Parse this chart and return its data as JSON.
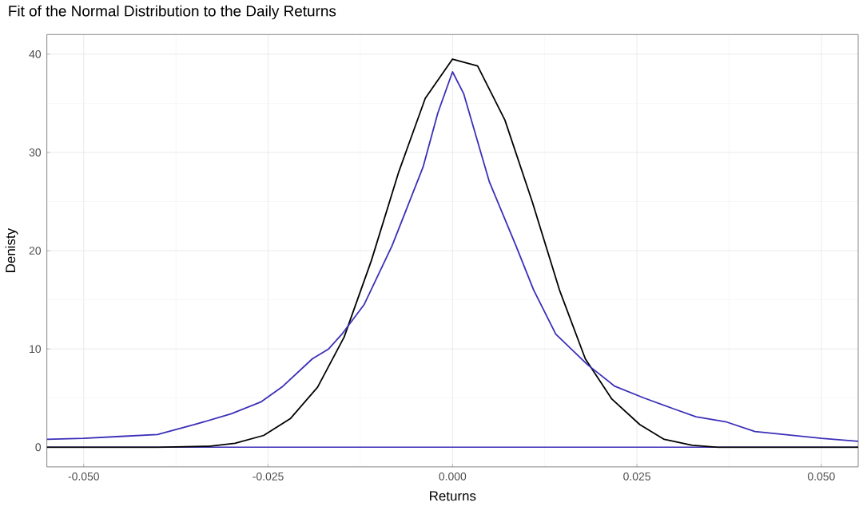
{
  "chart_data": {
    "type": "line",
    "title": "Fit of the Normal Distribution to the Daily Returns",
    "xlabel": "Returns",
    "ylabel": "Denisty",
    "xlim": [
      -0.055,
      0.055
    ],
    "ylim": [
      -2,
      42
    ],
    "xticks": [
      {
        "value": -0.05,
        "label": "-0.050"
      },
      {
        "value": -0.025,
        "label": "-0.025"
      },
      {
        "value": 0,
        "label": "0.000"
      },
      {
        "value": 0.025,
        "label": "0.025"
      },
      {
        "value": 0.05,
        "label": "0.050"
      }
    ],
    "yticks": [
      0,
      10,
      20,
      30,
      40
    ],
    "grid": true,
    "ref_lines": [
      {
        "axis": "y",
        "value": 0,
        "color": "#3b2fb8"
      }
    ],
    "series": [
      {
        "color": "#000000",
        "x": [
          -0.055,
          -0.04,
          -0.033,
          -0.0295,
          -0.0256,
          -0.022,
          -0.0183,
          -0.0147,
          -0.011,
          -0.0073,
          -0.0037,
          0,
          0.0034,
          0.0071,
          0.0108,
          0.0145,
          0.018,
          0.0216,
          0.0254,
          0.0287,
          0.0325,
          0.036,
          0.055
        ],
        "values": [
          0,
          0,
          0.1,
          0.4,
          1.2,
          2.9,
          6.1,
          11.2,
          19,
          28,
          35.5,
          39.5,
          38.8,
          33.3,
          25,
          16,
          9,
          4.9,
          2.3,
          0.8,
          0.2,
          0,
          0
        ]
      },
      {
        "color": "#3b2fb8",
        "x": [
          -0.055,
          -0.05,
          -0.045,
          -0.04,
          -0.035,
          -0.03,
          -0.026,
          -0.023,
          -0.019,
          -0.0168,
          -0.015,
          -0.012,
          -0.0082,
          -0.004,
          -0.002,
          0,
          0.0015,
          0.005,
          0.0086,
          0.011,
          0.014,
          0.0183,
          0.022,
          0.026,
          0.03,
          0.033,
          0.037,
          0.041,
          0.045,
          0.05,
          0.055
        ],
        "values": [
          0.8,
          0.9,
          1.1,
          1.3,
          2.3,
          3.4,
          4.6,
          6.2,
          9.0,
          10,
          11.5,
          14.5,
          20.5,
          28.5,
          34,
          38.2,
          36,
          27,
          20.5,
          16,
          11.5,
          8.4,
          6.2,
          5,
          3.9,
          3.1,
          2.6,
          1.6,
          1.3,
          0.9,
          0.6
        ]
      }
    ]
  }
}
